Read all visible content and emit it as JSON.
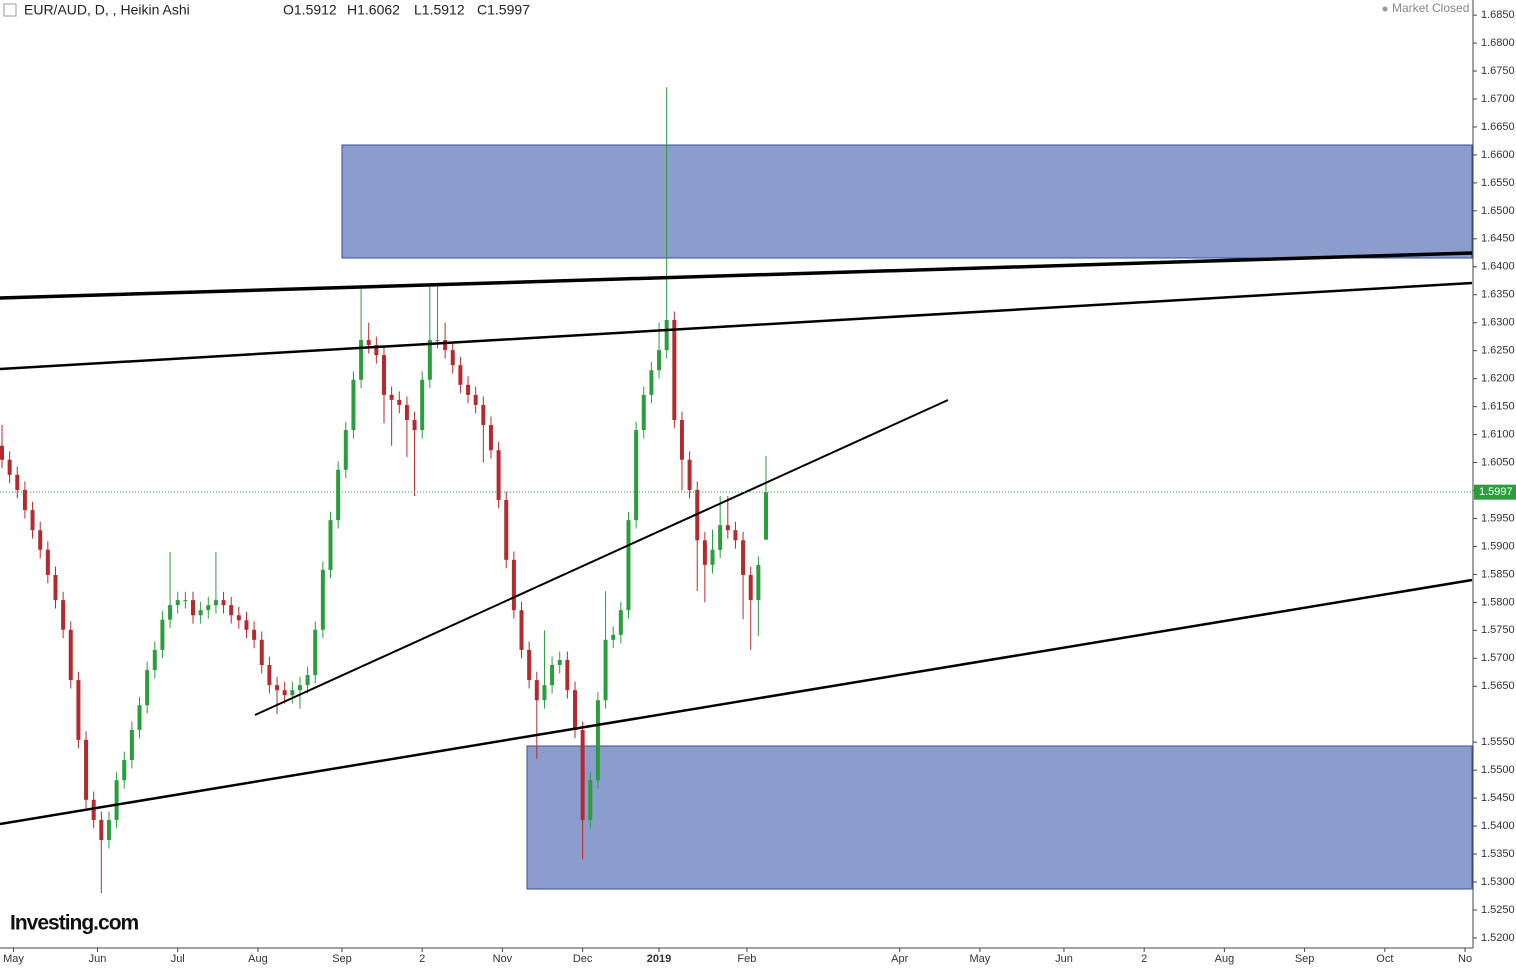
{
  "chart_data": {
    "type": "candlestick",
    "title": "EUR/AUD, D, , Heikin Ashi",
    "ohlc_labels": [
      "O1.5912",
      "H1.6062",
      "L1.5912",
      "C1.5997"
    ],
    "status": "Market Closed",
    "watermark": "Investing.com",
    "up_color": "#2a9d3c",
    "down_color": "#b52a2f",
    "last_price": 1.5997,
    "x": [
      0,
      2,
      4,
      6,
      8,
      10,
      12,
      14,
      16,
      18,
      20,
      22,
      24,
      26,
      28,
      30,
      32,
      34,
      36,
      38,
      40,
      42,
      44,
      46,
      48,
      50,
      52,
      54,
      56,
      58,
      60,
      62,
      64,
      66,
      68,
      70,
      72,
      74,
      76,
      78,
      80,
      82,
      84,
      86,
      88,
      90,
      92,
      94,
      96,
      98,
      100,
      102,
      104,
      106,
      108,
      110,
      112,
      114,
      116,
      118,
      120,
      122,
      124,
      126,
      128,
      130,
      132,
      134,
      136,
      138,
      140,
      142,
      144,
      146,
      148,
      150,
      152,
      154,
      156,
      158,
      160,
      162,
      164,
      166,
      168,
      170,
      172,
      174,
      176,
      178,
      180,
      182,
      184,
      186,
      188,
      190,
      192,
      194,
      196,
      198,
      200
    ],
    "open": [
      1.608,
      1.6055,
      1.6028,
      1.6001,
      1.5965,
      1.5929,
      1.5894,
      1.5849,
      1.5804,
      1.5751,
      1.5661,
      1.5554,
      1.5447,
      1.5411,
      1.5375,
      1.5411,
      1.5482,
      1.5518,
      1.5572,
      1.5616,
      1.5679,
      1.5715,
      1.5769,
      1.5795,
      1.5804,
      1.5804,
      1.5777,
      1.5786,
      1.5795,
      1.5804,
      1.5795,
      1.5777,
      1.5768,
      1.5751,
      1.5733,
      1.5688,
      1.5652,
      1.5643,
      1.5634,
      1.5643,
      1.5652,
      1.567,
      1.5751,
      1.5858,
      1.5947,
      1.6037,
      1.6108,
      1.6198,
      1.6269,
      1.626,
      1.6242,
      1.6171,
      1.6162,
      1.6153,
      1.6126,
      1.6108,
      1.6198,
      1.6269,
      1.6269,
      1.6251,
      1.6224,
      1.6189,
      1.6171,
      1.6153,
      1.6117,
      1.6072,
      1.5983,
      1.5876,
      1.5786,
      1.5715,
      1.5661,
      1.5625,
      1.5652,
      1.5688,
      1.5697,
      1.5643,
      1.5572,
      1.5411,
      1.5482,
      1.5625,
      1.5733,
      1.5742,
      1.5786,
      1.5947,
      1.6108,
      1.6171,
      1.6215,
      1.6251,
      1.6305,
      1.6126,
      1.6055,
      1.6001,
      1.5911,
      1.5867,
      1.5894,
      1.5938,
      1.5929,
      1.5911,
      1.5849,
      1.5804,
      1.5912
    ],
    "high": [
      1.6117,
      1.607,
      1.6043,
      1.6016,
      1.598,
      1.5944,
      1.5909,
      1.5864,
      1.5819,
      1.5766,
      1.5676,
      1.5569,
      1.5462,
      1.5426,
      1.5426,
      1.5497,
      1.5533,
      1.5587,
      1.5631,
      1.5694,
      1.573,
      1.5784,
      1.589,
      1.5819,
      1.5819,
      1.5819,
      1.5801,
      1.581,
      1.589,
      1.5819,
      1.581,
      1.5792,
      1.5783,
      1.5766,
      1.5748,
      1.5703,
      1.5667,
      1.5658,
      1.5658,
      1.5667,
      1.5685,
      1.5766,
      1.5873,
      1.5962,
      1.6052,
      1.6123,
      1.6213,
      1.636,
      1.63,
      1.6275,
      1.6257,
      1.6186,
      1.6177,
      1.6168,
      1.6141,
      1.6213,
      1.6365,
      1.6365,
      1.63,
      1.6266,
      1.6239,
      1.6204,
      1.6186,
      1.6168,
      1.6132,
      1.6087,
      1.5998,
      1.5891,
      1.5801,
      1.573,
      1.5676,
      1.575,
      1.5703,
      1.5712,
      1.5712,
      1.5658,
      1.5587,
      1.5497,
      1.564,
      1.582,
      1.5757,
      1.5801,
      1.5962,
      1.6123,
      1.6186,
      1.623,
      1.63,
      1.6721,
      1.632,
      1.6141,
      1.607,
      1.6016,
      1.5926,
      1.593,
      1.599,
      1.599,
      1.5944,
      1.5926,
      1.5864,
      1.5882,
      1.6062
    ],
    "low": [
      1.604,
      1.6013,
      1.5986,
      1.595,
      1.5914,
      1.5879,
      1.5834,
      1.5789,
      1.5736,
      1.5646,
      1.5539,
      1.5432,
      1.5396,
      1.528,
      1.536,
      1.5396,
      1.5467,
      1.5503,
      1.5557,
      1.5601,
      1.5664,
      1.57,
      1.5754,
      1.578,
      1.5789,
      1.5762,
      1.5762,
      1.5771,
      1.578,
      1.578,
      1.5762,
      1.5753,
      1.5736,
      1.5718,
      1.5673,
      1.5637,
      1.56,
      1.5619,
      1.5619,
      1.561,
      1.5637,
      1.5655,
      1.5736,
      1.5843,
      1.5932,
      1.6022,
      1.6093,
      1.6183,
      1.6245,
      1.6227,
      1.612,
      1.608,
      1.6138,
      1.606,
      1.599,
      1.6093,
      1.6183,
      1.6254,
      1.6236,
      1.6209,
      1.6174,
      1.6156,
      1.6138,
      1.605,
      1.6057,
      1.5968,
      1.5861,
      1.5771,
      1.57,
      1.5646,
      1.552,
      1.561,
      1.5637,
      1.5673,
      1.5628,
      1.5557,
      1.534,
      1.5396,
      1.5467,
      1.561,
      1.5718,
      1.5727,
      1.5771,
      1.5932,
      1.6093,
      1.6156,
      1.62,
      1.6236,
      1.6111,
      1.6,
      1.5986,
      1.582,
      1.58,
      1.5852,
      1.5879,
      1.5914,
      1.5896,
      1.577,
      1.5715,
      1.574,
      1.5912
    ],
    "close": [
      1.6055,
      1.6028,
      1.6001,
      1.5965,
      1.5929,
      1.5894,
      1.5849,
      1.5804,
      1.5751,
      1.5661,
      1.5554,
      1.5447,
      1.5411,
      1.5375,
      1.5411,
      1.5482,
      1.5518,
      1.5572,
      1.5616,
      1.5679,
      1.5715,
      1.5769,
      1.5795,
      1.5804,
      1.5804,
      1.5777,
      1.5786,
      1.5795,
      1.5804,
      1.5795,
      1.5777,
      1.5768,
      1.5751,
      1.5733,
      1.5688,
      1.5652,
      1.5643,
      1.5634,
      1.5643,
      1.5652,
      1.567,
      1.5751,
      1.5858,
      1.5947,
      1.6037,
      1.6108,
      1.6198,
      1.6269,
      1.626,
      1.6242,
      1.6171,
      1.6162,
      1.6153,
      1.6126,
      1.6108,
      1.6198,
      1.6269,
      1.6269,
      1.6251,
      1.6224,
      1.6189,
      1.6171,
      1.6153,
      1.6117,
      1.6072,
      1.5983,
      1.5876,
      1.5786,
      1.5715,
      1.5661,
      1.5625,
      1.5652,
      1.5688,
      1.5697,
      1.5643,
      1.5572,
      1.5411,
      1.5482,
      1.5625,
      1.5733,
      1.5742,
      1.5786,
      1.5947,
      1.6108,
      1.6171,
      1.6215,
      1.6251,
      1.6305,
      1.6126,
      1.6055,
      1.6001,
      1.5911,
      1.5867,
      1.5894,
      1.5938,
      1.5929,
      1.5911,
      1.5849,
      1.5804,
      1.5867,
      1.5997
    ],
    "xlim": [
      0,
      385
    ],
    "xticks": [
      {
        "value": 3,
        "label": "May"
      },
      {
        "value": 25,
        "label": "Jun"
      },
      {
        "value": 46,
        "label": "Jul"
      },
      {
        "value": 67,
        "label": "Aug"
      },
      {
        "value": 89,
        "label": "Sep"
      },
      {
        "value": 110,
        "label": "2"
      },
      {
        "value": 131,
        "label": "Nov"
      },
      {
        "value": 152,
        "label": "Dec"
      },
      {
        "value": 172,
        "label": "2019"
      },
      {
        "value": 195,
        "label": "Feb"
      },
      {
        "value": 235,
        "label": "Apr"
      },
      {
        "value": 256,
        "label": "May"
      },
      {
        "value": 278,
        "label": "Jun"
      },
      {
        "value": 299,
        "label": "2"
      },
      {
        "value": 320,
        "label": "Aug"
      },
      {
        "value": 341,
        "label": "Sep"
      },
      {
        "value": 362,
        "label": "Oct"
      },
      {
        "value": 383,
        "label": "No"
      }
    ],
    "ylim": [
      1.5182,
      1.6877
    ],
    "yticks": [
      {
        "value": 1.52,
        "label": "1.5200"
      },
      {
        "value": 1.525,
        "label": "1.5250"
      },
      {
        "value": 1.53,
        "label": "1.5300"
      },
      {
        "value": 1.535,
        "label": "1.5350"
      },
      {
        "value": 1.54,
        "label": "1.5400"
      },
      {
        "value": 1.545,
        "label": "1.5450"
      },
      {
        "value": 1.55,
        "label": "1.5500"
      },
      {
        "value": 1.555,
        "label": "1.5550"
      },
      {
        "value": 1.565,
        "label": "1.5650"
      },
      {
        "value": 1.57,
        "label": "1.5700"
      },
      {
        "value": 1.575,
        "label": "1.5750"
      },
      {
        "value": 1.58,
        "label": "1.5800"
      },
      {
        "value": 1.585,
        "label": "1.5850"
      },
      {
        "value": 1.59,
        "label": "1.5900"
      },
      {
        "value": 1.595,
        "label": "1.5950"
      },
      {
        "value": 1.6,
        "label": "1.6000"
      },
      {
        "value": 1.605,
        "label": "1.6050"
      },
      {
        "value": 1.61,
        "label": "1.6100"
      },
      {
        "value": 1.615,
        "label": "1.6150"
      },
      {
        "value": 1.62,
        "label": "1.6200"
      },
      {
        "value": 1.625,
        "label": "1.6250"
      },
      {
        "value": 1.63,
        "label": "1.6300"
      },
      {
        "value": 1.635,
        "label": "1.6350"
      },
      {
        "value": 1.64,
        "label": "1.6400"
      },
      {
        "value": 1.645,
        "label": "1.6450"
      },
      {
        "value": 1.65,
        "label": "1.6500"
      },
      {
        "value": 1.655,
        "label": "1.6550"
      },
      {
        "value": 1.66,
        "label": "1.6600"
      },
      {
        "value": 1.665,
        "label": "1.6650"
      },
      {
        "value": 1.67,
        "label": "1.6700"
      },
      {
        "value": 1.675,
        "label": "1.6750"
      },
      {
        "value": 1.68,
        "label": "1.6800"
      },
      {
        "value": 1.685,
        "label": "1.6850"
      }
    ]
  }
}
